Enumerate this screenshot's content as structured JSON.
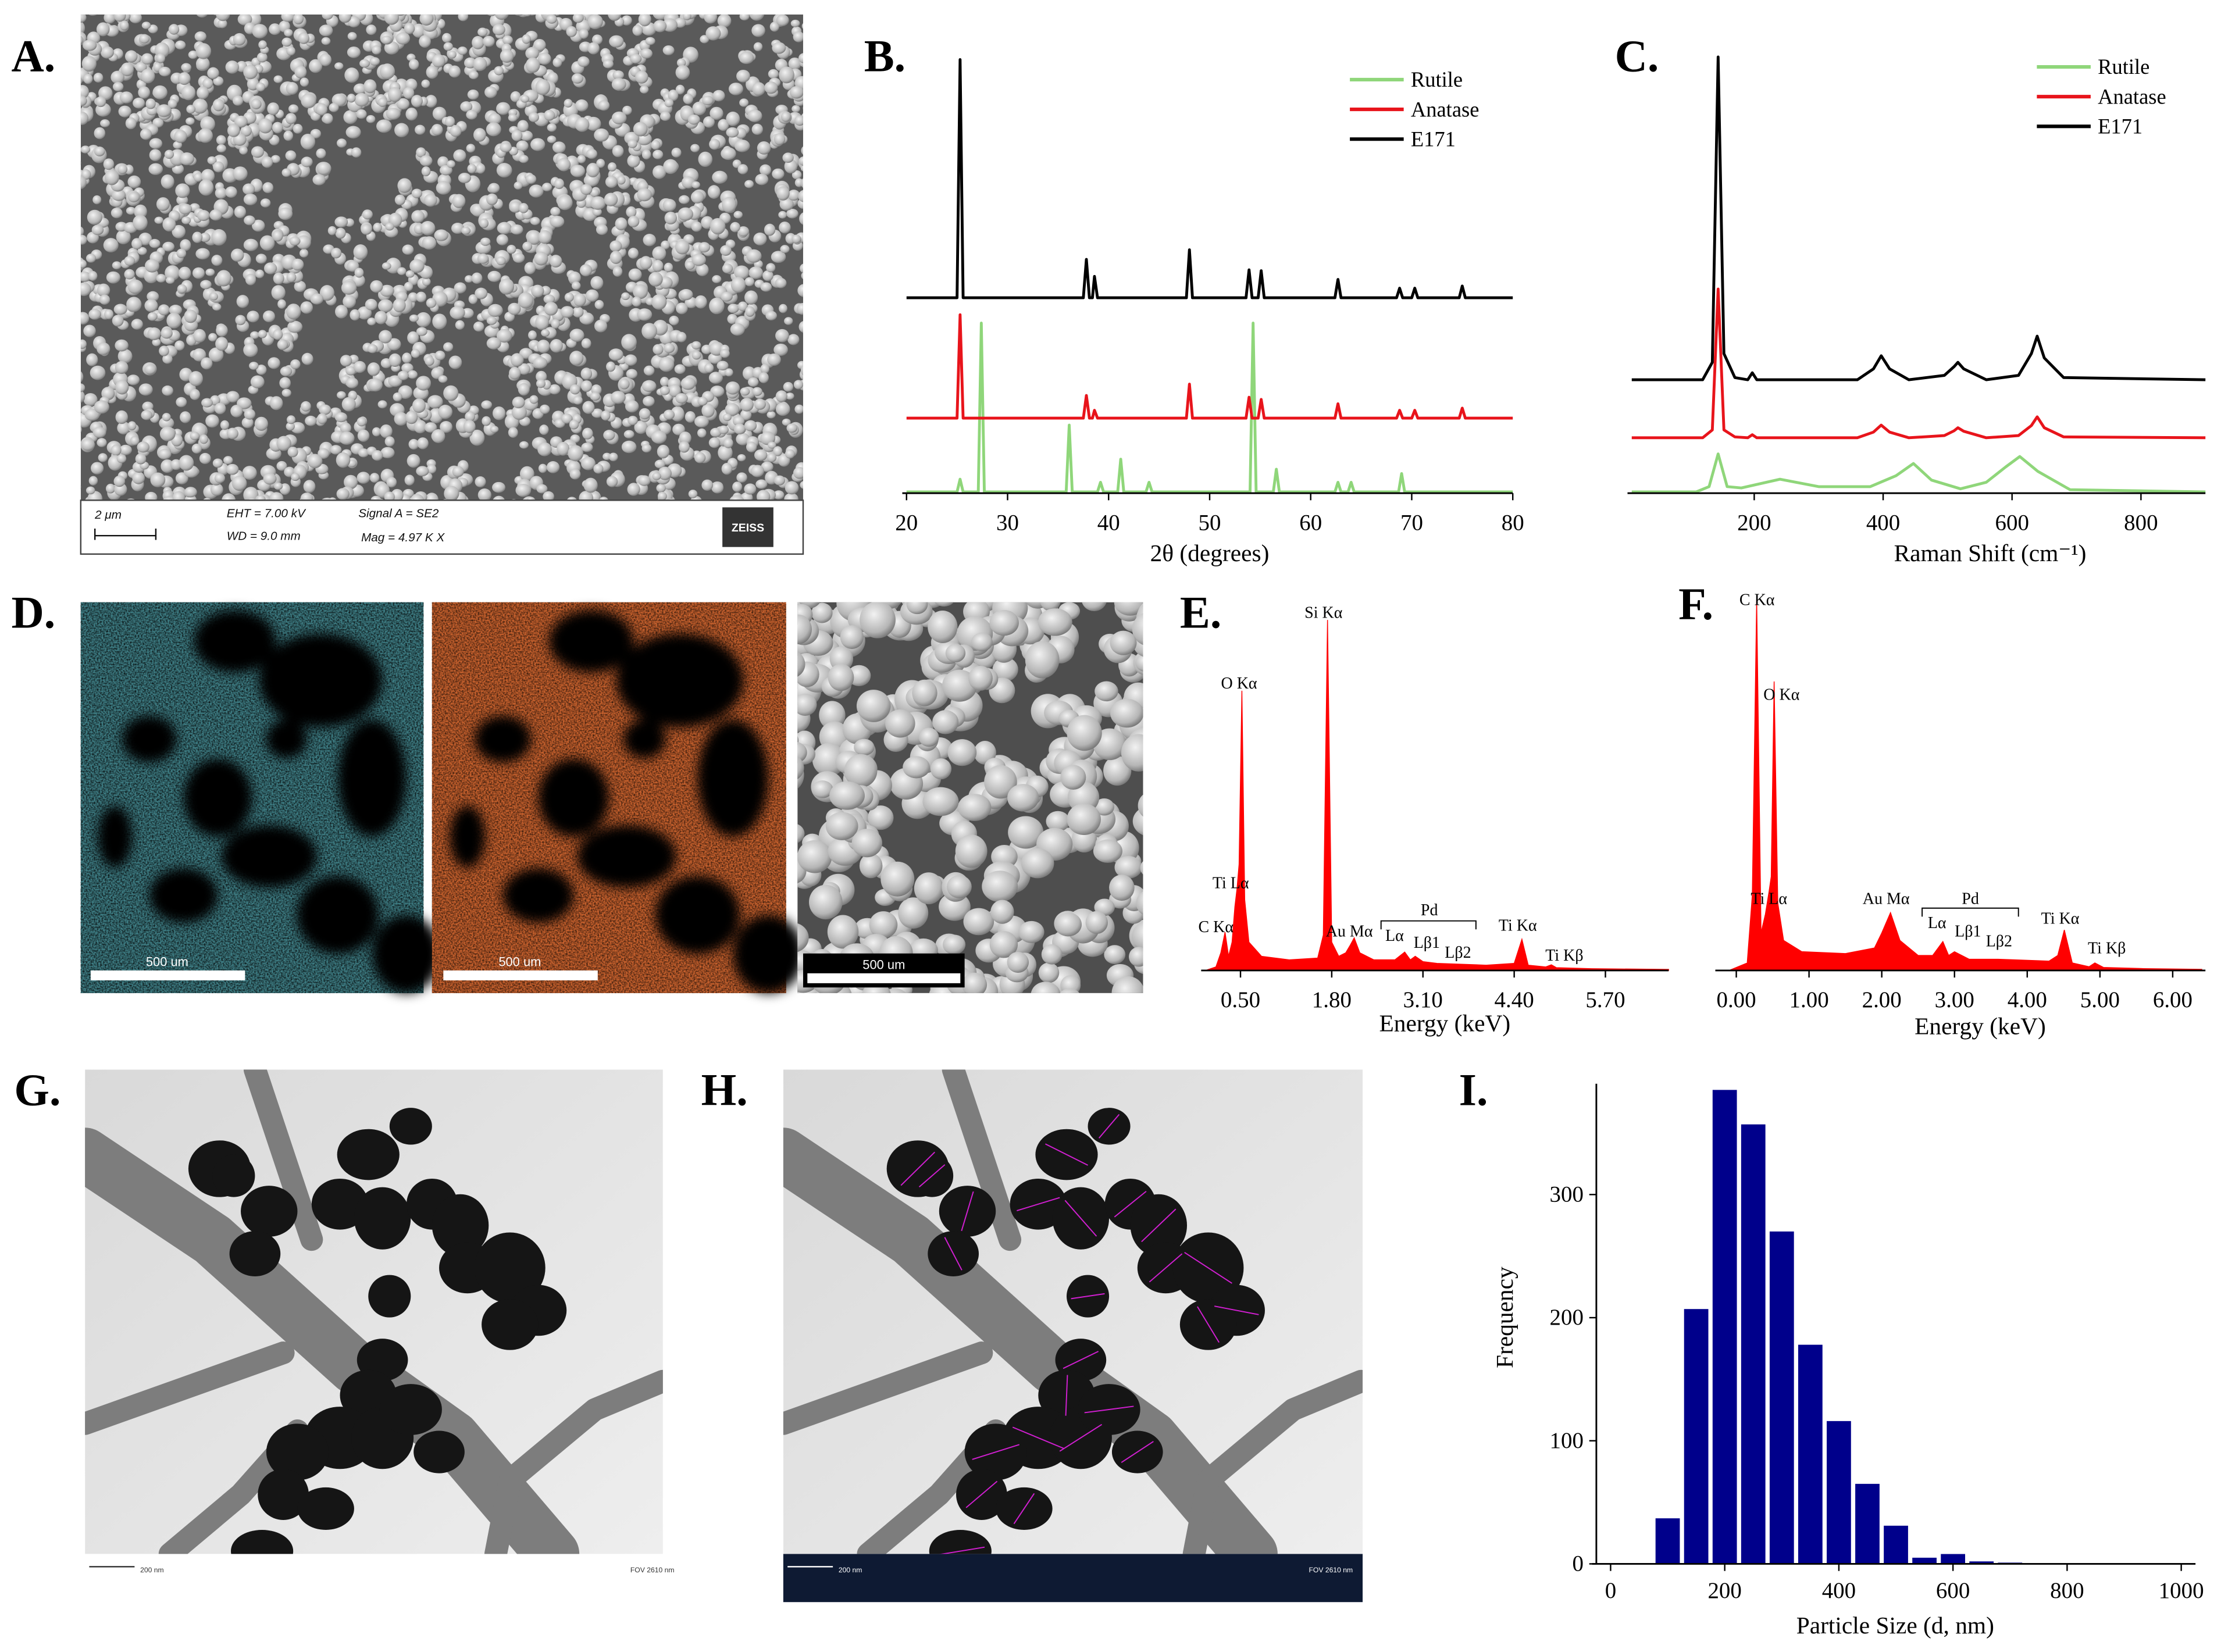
{
  "panel_labels": [
    "A.",
    "B.",
    "C.",
    "D.",
    "E.",
    "F.",
    "G.",
    "H.",
    "I."
  ],
  "images": {
    "sem_info": {
      "scale": "2 μm",
      "eht": "EHT = 7.00 kV",
      "wd": "WD = 9.0 mm",
      "signal": "Signal A = SE2",
      "mag": "Mag = 4.97 K X",
      "brand": "ZEISS"
    },
    "map_scale_bars": [
      "500 um",
      "500 um",
      "500 um"
    ],
    "tem_scale": [
      "200 nm",
      "200 nm"
    ],
    "tem_fov": [
      "FOV 2610 nm",
      "FOV 2610 nm"
    ]
  },
  "chart_data": [
    {
      "type": "line",
      "xlabel": "2θ (degrees)",
      "xlim": [
        20,
        80
      ],
      "xticks": [
        20,
        30,
        40,
        50,
        60,
        70,
        80
      ],
      "ylim": [
        0,
        100
      ],
      "legend": "top-right",
      "series": [
        {
          "name": "Rutile",
          "color": "#8fd67a",
          "x": [
            20,
            25.0,
            25.3,
            25.6,
            27.1,
            27.4,
            27.7,
            35.8,
            36.1,
            36.4,
            38.9,
            39.2,
            39.5,
            40.9,
            41.2,
            41.5,
            43.7,
            44.0,
            44.3,
            54.0,
            54.3,
            54.6,
            56.3,
            56.6,
            56.9,
            62.4,
            62.7,
            63.0,
            63.7,
            64.0,
            64.3,
            68.7,
            69.0,
            69.3,
            80
          ],
          "values": [
            0.3,
            0.3,
            3.2,
            0.3,
            0.3,
            39,
            0.3,
            0.3,
            15.6,
            0.3,
            0.3,
            2.5,
            0.3,
            0.3,
            7.8,
            0.3,
            0.3,
            2.5,
            0.3,
            0.3,
            39,
            0.3,
            0.3,
            5.5,
            0.3,
            0.3,
            2.5,
            0.3,
            0.3,
            2.5,
            0.3,
            0.3,
            4.5,
            0.3,
            0.3
          ]
        },
        {
          "name": "Anatase",
          "color": "#e8141b",
          "x": [
            20,
            25.0,
            25.3,
            25.6,
            37.5,
            37.8,
            38.1,
            38.4,
            38.6,
            38.9,
            47.7,
            48.0,
            48.3,
            53.6,
            53.9,
            54.2,
            54.8,
            55.1,
            55.4,
            62.4,
            62.7,
            63.0,
            68.5,
            68.8,
            69.1,
            70.0,
            70.3,
            70.6,
            74.7,
            75.0,
            75.3,
            80
          ],
          "values": [
            17.2,
            17.2,
            40.9,
            17.2,
            17.2,
            22.4,
            17.2,
            17.2,
            19,
            17.2,
            17.2,
            25,
            17.2,
            17.2,
            22,
            17.2,
            17.2,
            21.5,
            17.2,
            17.2,
            20.5,
            17.2,
            17.2,
            19,
            17.2,
            17.2,
            19,
            17.2,
            17.2,
            19.5,
            17.2,
            17.2
          ]
        },
        {
          "name": "E171",
          "color": "#000000",
          "x": [
            20,
            25.0,
            25.3,
            25.6,
            37.5,
            37.8,
            38.1,
            38.4,
            38.6,
            38.9,
            47.7,
            48.0,
            48.3,
            53.6,
            53.9,
            54.2,
            54.8,
            55.1,
            55.4,
            62.4,
            62.7,
            63.0,
            68.5,
            68.8,
            69.1,
            70.0,
            70.3,
            70.6,
            74.7,
            75.0,
            75.3,
            80
          ],
          "values": [
            44.8,
            44.8,
            99.4,
            44.8,
            44.8,
            53.6,
            44.8,
            44.8,
            49.7,
            44.8,
            44.8,
            55.8,
            44.8,
            44.8,
            51.2,
            44.8,
            44.8,
            51,
            44.8,
            44.8,
            49,
            44.8,
            44.8,
            47,
            44.8,
            44.8,
            47,
            44.8,
            44.8,
            47.5,
            44.8,
            44.8
          ]
        }
      ]
    },
    {
      "type": "line",
      "xlabel": "Raman Shift (cm⁻¹)",
      "xlim": [
        10,
        900
      ],
      "xticks": [
        200,
        400,
        600,
        800
      ],
      "ylim": [
        0,
        100
      ],
      "legend": "top-right",
      "series": [
        {
          "name": "Rutile",
          "color": "#8fd67a",
          "x": [
            10,
            110,
            130,
            144,
            158,
            180,
            240,
            300,
            380,
            420,
            447,
            475,
            520,
            560,
            590,
            612,
            640,
            690,
            900
          ],
          "values": [
            0.3,
            0.3,
            1.5,
            9,
            1.5,
            1.2,
            3.2,
            1.5,
            1.5,
            4,
            6.8,
            3,
            1,
            2.5,
            6,
            8.4,
            5,
            0.8,
            0.3
          ]
        },
        {
          "name": "Anatase",
          "color": "#e8141b",
          "x": [
            10,
            120,
            135,
            144,
            153,
            170,
            190,
            197,
            204,
            360,
            385,
            397,
            410,
            440,
            495,
            510,
            516,
            525,
            560,
            610,
            630,
            639,
            650,
            680,
            900
          ],
          "values": [
            12.7,
            12.7,
            14.5,
            46.8,
            14.5,
            12.9,
            12.7,
            13.4,
            12.7,
            12.7,
            14,
            15.6,
            14,
            12.7,
            13.2,
            14.3,
            15,
            14.2,
            12.7,
            13.2,
            15.5,
            17.5,
            15,
            12.9,
            12.7
          ]
        },
        {
          "name": "E171",
          "color": "#000000",
          "x": [
            10,
            120,
            135,
            144,
            153,
            170,
            190,
            197,
            204,
            360,
            385,
            397,
            410,
            440,
            495,
            510,
            516,
            525,
            560,
            610,
            630,
            639,
            650,
            680,
            900
          ],
          "values": [
            26,
            26,
            30,
            100,
            32,
            26.5,
            26,
            27.6,
            26,
            26,
            28.5,
            31.5,
            28.5,
            26,
            27,
            29,
            30,
            28.5,
            26,
            27,
            32,
            36,
            31,
            26.5,
            26
          ]
        }
      ]
    },
    {
      "type": "area",
      "xlabel": "Energy (keV)",
      "xlim": [
        0,
        6.6
      ],
      "xticks": [
        {
          "value": 0.5,
          "label": "0.50"
        },
        {
          "value": 1.8,
          "label": "1.80"
        },
        {
          "value": 3.1,
          "label": "3.10"
        },
        {
          "value": 4.4,
          "label": "4.40"
        },
        {
          "value": 5.7,
          "label": "5.70"
        }
      ],
      "ylim": [
        0,
        100
      ],
      "annotations": [
        "C Kα",
        "O Kα",
        "Ti Lα",
        "Si Kα",
        "Au Mα",
        "Pd",
        "Lα",
        "Lβ1",
        "Lβ2",
        "Ti Kα",
        "Ti Kβ"
      ],
      "series": [
        {
          "color": "#ff0000",
          "x": [
            0.0,
            0.15,
            0.22,
            0.28,
            0.33,
            0.38,
            0.42,
            0.45,
            0.48,
            0.52,
            0.56,
            0.62,
            0.8,
            1.2,
            1.6,
            1.68,
            1.74,
            1.8,
            1.9,
            2.0,
            2.06,
            2.12,
            2.2,
            2.4,
            2.7,
            2.84,
            2.92,
            2.99,
            3.1,
            3.3,
            4.0,
            4.4,
            4.51,
            4.6,
            4.85,
            4.93,
            5.0,
            5.5,
            6.6
          ],
          "values": [
            0,
            1,
            5,
            10.8,
            4,
            8,
            18,
            23,
            30,
            79,
            20,
            8,
            4,
            3,
            3.5,
            10,
            99,
            8,
            4,
            5,
            7,
            9.2,
            5,
            3,
            3,
            5.2,
            3,
            4,
            2.5,
            2,
            1.5,
            2,
            8.8,
            1.5,
            1,
            1.6,
            0.8,
            0.5,
            0.3
          ]
        }
      ]
    },
    {
      "type": "area",
      "xlabel": "Energy (keV)",
      "xlim": [
        -0.23,
        6.45
      ],
      "xticks": [
        {
          "value": 0,
          "label": "0.00"
        },
        {
          "value": 1,
          "label": "1.00"
        },
        {
          "value": 2,
          "label": "2.00"
        },
        {
          "value": 3,
          "label": "3.00"
        },
        {
          "value": 4,
          "label": "4.00"
        },
        {
          "value": 5,
          "label": "5.00"
        },
        {
          "value": 6,
          "label": "6.00"
        }
      ],
      "ylim": [
        0,
        100
      ],
      "annotations": [
        "C Kα",
        "O Kα",
        "Ti Lα",
        "Au Mα",
        "Pd",
        "Lα",
        "Lβ1",
        "Lβ2",
        "Ti Kα",
        "Ti Kβ"
      ],
      "series": [
        {
          "color": "#ff0000",
          "x": [
            -0.1,
            0.15,
            0.22,
            0.28,
            0.34,
            0.4,
            0.45,
            0.48,
            0.52,
            0.57,
            0.65,
            0.9,
            1.5,
            1.9,
            2.0,
            2.12,
            2.25,
            2.5,
            2.7,
            2.84,
            2.92,
            3.0,
            3.2,
            3.6,
            4.3,
            4.42,
            4.51,
            4.62,
            4.85,
            4.93,
            5.05,
            5.6,
            6.4
          ],
          "values": [
            0,
            2,
            20,
            98.8,
            10,
            15,
            21,
            25,
            77,
            18,
            8,
            5,
            4.5,
            6,
            10,
            15.4,
            8,
            4,
            4,
            7.7,
            4,
            5,
            3,
            3,
            2.5,
            4,
            10.8,
            2,
            1,
            2,
            0.8,
            0.5,
            0.3
          ]
        }
      ]
    },
    {
      "type": "histogram",
      "xlabel": "Particle Size (d, nm)",
      "ylabel": "Frequency",
      "color": "#00008b",
      "bins": [
        75,
        125,
        175,
        225,
        275,
        325,
        375,
        425,
        475,
        525,
        575,
        625,
        675,
        725
      ],
      "values": [
        37,
        207,
        385,
        357,
        270,
        178,
        116,
        65,
        31,
        5,
        8,
        2,
        1
      ],
      "xlim": [
        -25,
        1025
      ],
      "xticks": [
        0,
        200,
        400,
        600,
        800,
        1000
      ],
      "ylim": [
        0,
        390
      ],
      "yticks": [
        0,
        100,
        200,
        300
      ]
    }
  ]
}
